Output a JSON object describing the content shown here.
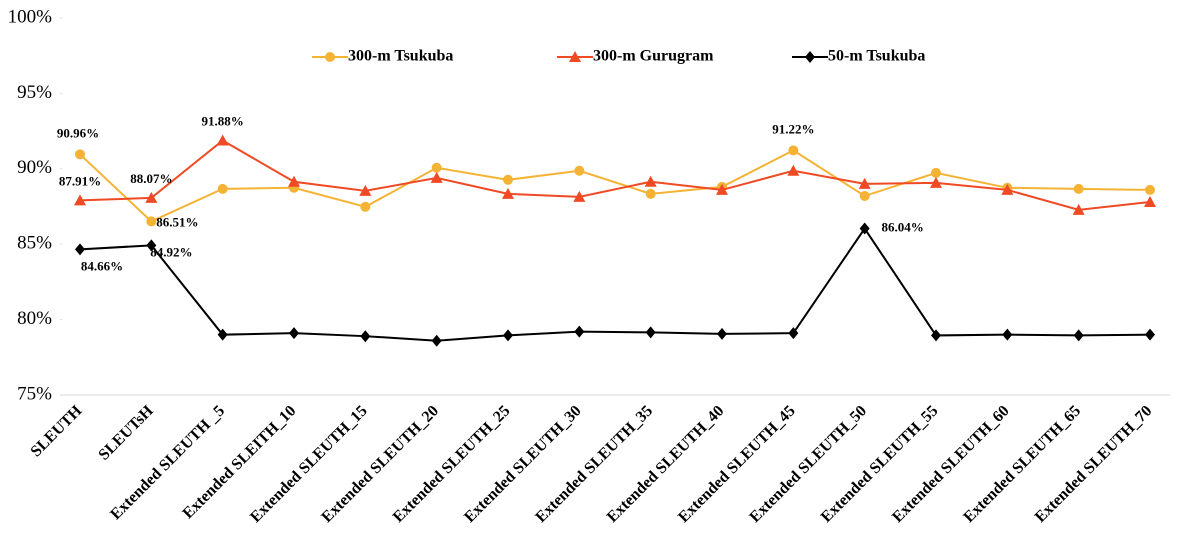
{
  "chart_data": {
    "type": "line",
    "categories": [
      "SLEUTH",
      "SLEUTsH",
      "Extended SLEUTH _5",
      "Extended SLEITH_10",
      "Extended SLEUTH_15",
      "Extended SLEUTH_20",
      "Extended SLEUTH_25",
      "Extended SLEUTH_30",
      "Extended SLEUTH_35",
      "Extended SLEUTH_40",
      "Extended SLEUTH_45",
      "Extended SLEUTH_50",
      "Extended SLEUTH_55",
      "Extended SLEUTH_60",
      "Extended SLEUTH_65",
      "Extended SLEUTH_70"
    ],
    "series": [
      {
        "name": "300-m Tsukuba",
        "color": "#f5b335",
        "marker": "circle",
        "values": [
          90.96,
          86.51,
          88.67,
          88.74,
          87.48,
          90.07,
          89.27,
          89.87,
          88.34,
          88.8,
          91.22,
          88.2,
          89.73,
          88.74,
          88.67,
          88.6
        ],
        "value_labels": [
          "90.96%",
          "86.51%",
          null,
          null,
          null,
          null,
          null,
          null,
          null,
          null,
          "91.22%",
          null,
          null,
          null,
          null,
          null
        ]
      },
      {
        "name": "300-m Gurugram",
        "color": "#ef4a24",
        "marker": "triangle",
        "values": [
          87.91,
          88.07,
          91.88,
          89.14,
          88.54,
          89.4,
          88.34,
          88.14,
          89.14,
          88.6,
          89.87,
          89.0,
          89.07,
          88.6,
          87.28,
          87.8
        ],
        "value_labels": [
          "87.91%",
          "88.07%",
          "91.88%",
          null,
          null,
          null,
          null,
          null,
          null,
          null,
          null,
          null,
          null,
          null,
          null,
          null
        ]
      },
      {
        "name": "50-m Tsukuba",
        "color": "#000000",
        "marker": "diamond",
        "values": [
          84.66,
          84.92,
          79.0,
          79.1,
          78.9,
          78.6,
          78.95,
          79.2,
          79.15,
          79.05,
          79.1,
          86.04,
          78.95,
          79.0,
          78.95,
          79.0
        ],
        "value_labels": [
          "84.66%",
          "84.92%",
          null,
          null,
          null,
          null,
          null,
          null,
          null,
          null,
          null,
          "86.04%",
          null,
          null,
          null,
          null
        ]
      }
    ],
    "ylim": [
      75,
      100
    ],
    "yticks": [
      {
        "value": 75,
        "label": "75%"
      },
      {
        "value": 80,
        "label": "80%"
      },
      {
        "value": 85,
        "label": "85%"
      },
      {
        "value": 90,
        "label": "90%"
      },
      {
        "value": 95,
        "label": "95%"
      },
      {
        "value": 100,
        "label": "100%"
      }
    ],
    "grid": false,
    "legend": "top"
  }
}
